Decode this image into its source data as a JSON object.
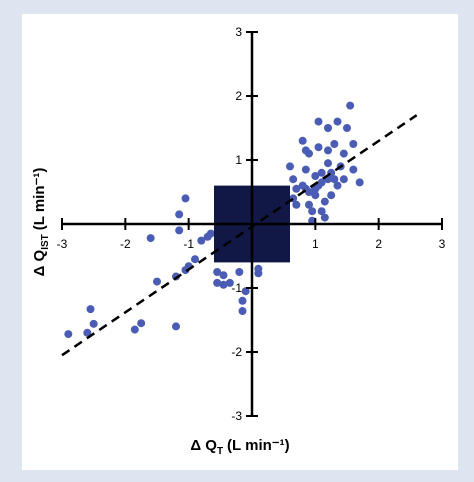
{
  "chart_data": {
    "type": "scatter",
    "title": "",
    "xlabel": "Δ Q",
    "xlabel_sub": "T",
    "xlabel_unit": "(L min⁻¹)",
    "ylabel": "Δ Q",
    "ylabel_sub": "IST",
    "ylabel_unit": "(L min⁻¹)",
    "xlim": [
      -3,
      3
    ],
    "ylim": [
      -3,
      3
    ],
    "xticks": [
      "-3",
      "-2",
      "-1",
      "1",
      "2",
      "3"
    ],
    "xtick_values": [
      -3,
      -2,
      -1,
      1,
      2,
      3
    ],
    "yticks": [
      "3",
      "2",
      "1",
      "-1",
      "-2",
      "-3"
    ],
    "ytick_values": [
      3,
      2,
      1,
      -1,
      -2,
      -3
    ],
    "grid": false,
    "legend": "none",
    "point_color": "#4a5cb3",
    "box_color": "#111845",
    "line_color": "#000000",
    "center_box": {
      "x": [
        -0.6,
        0.6
      ],
      "y": [
        -0.6,
        0.6
      ]
    },
    "regression_line": {
      "x": [
        -3,
        2.6
      ],
      "y": [
        -2.05,
        1.7
      ]
    },
    "points": [
      [
        -2.9,
        -1.72
      ],
      [
        -2.6,
        -1.7
      ],
      [
        -2.55,
        -1.33
      ],
      [
        -2.5,
        -1.56
      ],
      [
        -1.85,
        -1.65
      ],
      [
        -1.75,
        -1.55
      ],
      [
        -1.2,
        -1.6
      ],
      [
        -1.5,
        -0.9
      ],
      [
        -1.2,
        -0.82
      ],
      [
        -1.05,
        -0.72
      ],
      [
        -1.0,
        -0.66
      ],
      [
        -0.9,
        -0.55
      ],
      [
        -1.15,
        -0.1
      ],
      [
        -1.6,
        -0.22
      ],
      [
        -1.15,
        0.15
      ],
      [
        -1.05,
        0.4
      ],
      [
        -0.8,
        -0.26
      ],
      [
        -0.7,
        -0.2
      ],
      [
        -0.65,
        -0.15
      ],
      [
        -0.55,
        -0.75
      ],
      [
        -0.55,
        -0.92
      ],
      [
        -0.45,
        -0.95
      ],
      [
        -0.45,
        -0.8
      ],
      [
        -0.35,
        -0.92
      ],
      [
        -0.2,
        -0.75
      ],
      [
        -0.15,
        -1.2
      ],
      [
        -0.15,
        -1.36
      ],
      [
        -0.1,
        -1.05
      ],
      [
        0.1,
        -0.7
      ],
      [
        0.1,
        -0.77
      ],
      [
        0.6,
        0.9
      ],
      [
        0.65,
        0.7
      ],
      [
        0.7,
        0.55
      ],
      [
        0.65,
        0.4
      ],
      [
        0.7,
        0.3
      ],
      [
        0.8,
        0.6
      ],
      [
        0.8,
        1.3
      ],
      [
        0.85,
        1.15
      ],
      [
        0.85,
        0.85
      ],
      [
        0.9,
        1.1
      ],
      [
        0.9,
        0.5
      ],
      [
        0.9,
        0.3
      ],
      [
        0.95,
        0.05
      ],
      [
        0.95,
        0.2
      ],
      [
        1.0,
        0.55
      ],
      [
        1.0,
        0.75
      ],
      [
        1.05,
        0.6
      ],
      [
        1.05,
        1.2
      ],
      [
        1.05,
        1.6
      ],
      [
        1.1,
        0.8
      ],
      [
        1.1,
        0.2
      ],
      [
        1.15,
        0.1
      ],
      [
        1.15,
        0.35
      ],
      [
        1.2,
        1.5
      ],
      [
        1.2,
        1.15
      ],
      [
        1.2,
        0.95
      ],
      [
        1.25,
        0.8
      ],
      [
        1.25,
        0.45
      ],
      [
        1.3,
        1.25
      ],
      [
        1.3,
        0.7
      ],
      [
        1.35,
        0.6
      ],
      [
        1.4,
        0.9
      ],
      [
        1.45,
        1.1
      ],
      [
        1.45,
        0.7
      ],
      [
        1.5,
        1.5
      ],
      [
        1.55,
        1.85
      ],
      [
        1.6,
        0.85
      ],
      [
        1.6,
        1.25
      ],
      [
        1.7,
        0.65
      ],
      [
        1.0,
        0.45
      ],
      [
        0.85,
        0.55
      ],
      [
        1.1,
        0.65
      ],
      [
        1.35,
        1.6
      ],
      [
        1.2,
        0.7
      ]
    ]
  }
}
